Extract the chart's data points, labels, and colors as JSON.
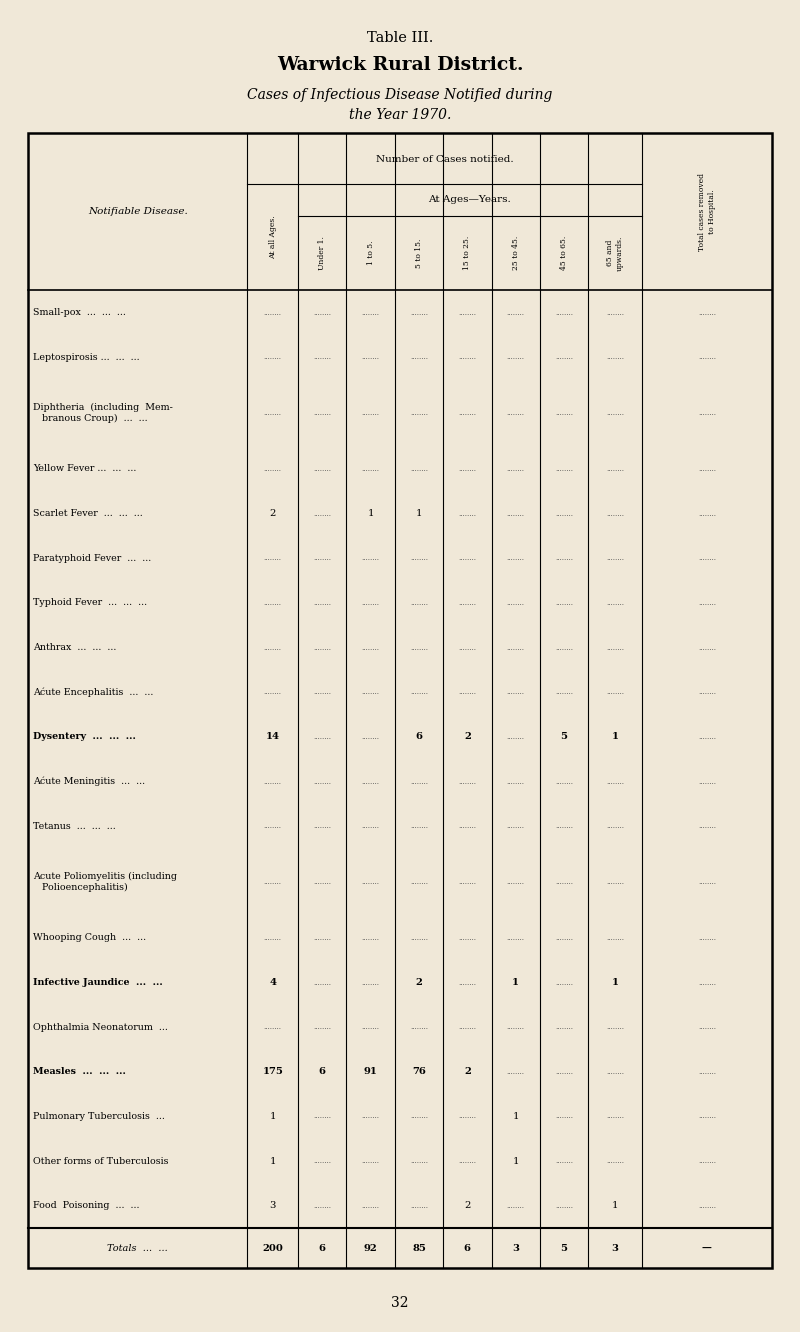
{
  "title1": "Table III.",
  "title2": "Warwick Rural District.",
  "title3": "Cases of Infectious Disease Notified during",
  "title4": "the Year 1970.",
  "bg_color": "#f0e8d8",
  "col_headers": [
    "At all Ages.",
    "Under 1.",
    "1 to 5.",
    "5 to 15.",
    "15 to 25.",
    "25 to 45.",
    "45 to 65.",
    "65 and\nupwards.",
    "Total cases removed\nto Hospital."
  ],
  "diseases": [
    "Small-pox  ...  ...  ...",
    "Leptospirosis ...  ...  ...",
    "Diphtheria  (including  Mem-\n   branous Croup)  ...  ...",
    "Yellow Fever ...  ...  ...",
    "Scarlet Fever  ...  ...  ...",
    "Paratyphoid Fever  ...  ...",
    "Typhoid Fever  ...  ...  ...",
    "Anthrax  ...  ...  ...",
    "Aćute Encephalitis  ...  ...",
    "Dysentery  ...  ...  ...",
    "Aćute Meningitis  ...  ...",
    "Tetanus  ...  ...  ...",
    "Acute Poliomyelitis (including\n   Polioencephalitis)",
    "Whooping Cough  ...  ...",
    "Infective Jaundice  ...  ...",
    "Ophthalmia Neonatorum  ...",
    "Measles  ...  ...  ...",
    "Pulmonary Tuberculosis  ...",
    "Other forms of Tuberculosis",
    "Food  Poisoning  ...  ..."
  ],
  "bold_rows": [
    9,
    14,
    16
  ],
  "data": [
    [
      "",
      "",
      "",
      "",
      "",
      "",
      "",
      "",
      ""
    ],
    [
      "",
      "",
      "",
      "",
      "",
      "",
      "",
      "",
      ""
    ],
    [
      "",
      "",
      "",
      "",
      "",
      "",
      "",
      "",
      ""
    ],
    [
      "",
      "",
      "",
      "",
      "",
      "",
      "",
      "",
      ""
    ],
    [
      "2",
      "",
      "1",
      "1",
      "",
      "",
      "",
      "",
      ""
    ],
    [
      "",
      "",
      "",
      "",
      "",
      "",
      "",
      "",
      ""
    ],
    [
      "",
      "",
      "",
      "",
      "",
      "",
      "",
      "",
      ""
    ],
    [
      "",
      "",
      "",
      "",
      "",
      "",
      "",
      "",
      ""
    ],
    [
      "",
      "",
      "",
      "",
      "",
      "",
      "",
      "",
      ""
    ],
    [
      "14",
      "",
      "",
      "6",
      "2",
      "",
      "5",
      "1",
      ""
    ],
    [
      "",
      "",
      "",
      "",
      "",
      "",
      "",
      "",
      ""
    ],
    [
      "",
      "",
      "",
      "",
      "",
      "",
      "",
      "",
      ""
    ],
    [
      "",
      "",
      "",
      "",
      "",
      "",
      "",
      "",
      ""
    ],
    [
      "",
      "",
      "",
      "",
      "",
      "",
      "",
      "",
      ""
    ],
    [
      "4",
      "",
      "",
      "2",
      "",
      "1",
      "",
      "1",
      ""
    ],
    [
      "",
      "",
      "",
      "",
      "",
      "",
      "",
      "",
      ""
    ],
    [
      "175",
      "6",
      "91",
      "76",
      "2",
      "",
      "",
      "",
      ""
    ],
    [
      "1",
      "",
      "",
      "",
      "",
      "1",
      "",
      "",
      ""
    ],
    [
      "1",
      "",
      "",
      "",
      "",
      "1",
      "",
      "",
      ""
    ],
    [
      "3",
      "",
      "",
      "",
      "2",
      "",
      "",
      "1",
      ""
    ]
  ],
  "totals": [
    "200",
    "6",
    "92",
    "85",
    "6",
    "3",
    "5",
    "3",
    "—"
  ]
}
